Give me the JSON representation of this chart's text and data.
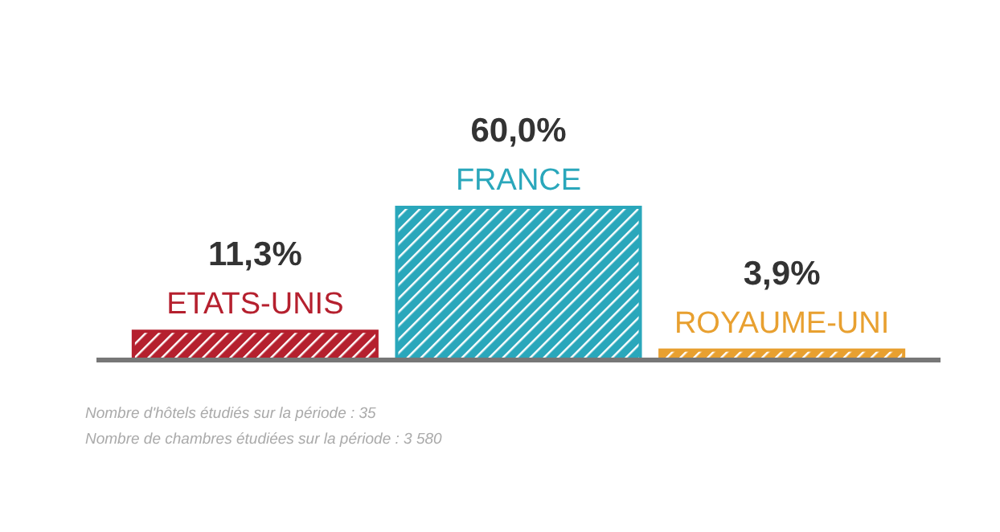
{
  "chart_data": {
    "type": "bar",
    "categories": [
      "ETATS-UNIS",
      "FRANCE",
      "ROYAUME-UNI"
    ],
    "values": [
      11.3,
      60,
      3.9
    ],
    "colors": [
      "#b5202e",
      "#2aa7bb",
      "#e8a030"
    ],
    "value_labels": [
      "11,3%",
      "60,0%",
      "3,9%"
    ],
    "annotations": [
      "Nombre d'hôtels étudiés sur la période : 35",
      "Nombre de chambres étudiées sur la période : 3 580"
    ]
  }
}
